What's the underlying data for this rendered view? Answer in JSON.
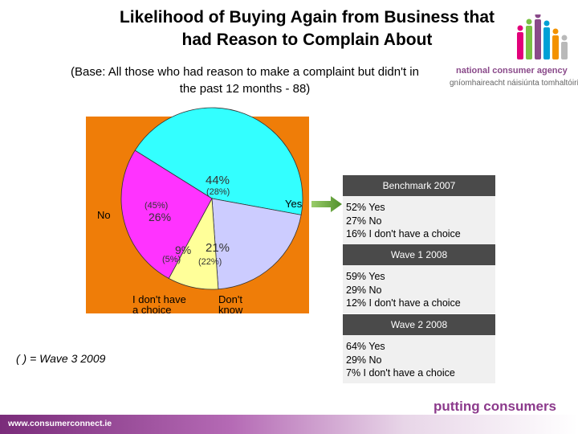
{
  "title_line1": "Likelihood of Buying Again from Business that",
  "title_line2": "had Reason to Complain About",
  "subtitle_line1": "(Base: All those who had reason to make a complaint but didn't in",
  "subtitle_line2": "the past 12 months - 88)",
  "logo": {
    "line1": "national consumer agency",
    "line2": "gníomhaireacht náisiúnta tomhaltóirí",
    "colors": [
      "#e2007a",
      "#7ac143",
      "#8a4a8a",
      "#00a0d6",
      "#f39200",
      "#b9b9b9"
    ]
  },
  "chart_data": {
    "type": "pie",
    "colors": {
      "Yes": "#33ffff",
      "No": "#ff33ff",
      "I don't have a choice": "#ffff99",
      "Don't know": "#ccccff"
    },
    "slices": [
      {
        "category": "Yes",
        "value": 44,
        "label": "44%",
        "wave3_label": "(28%)"
      },
      {
        "category": "Don't know",
        "value": 21,
        "label": "21%",
        "wave3_label": "(22%)"
      },
      {
        "category": "I don't have a choice",
        "value": 9,
        "label": "9%",
        "wave3_label": "(5%)"
      },
      {
        "category": "No",
        "value": 26,
        "label": "26%",
        "wave3_label": "(45%)"
      }
    ],
    "category_labels": {
      "yes": "Yes",
      "no": "No",
      "choice_line1": "I don't have",
      "choice_line2": "a choice",
      "dk_line1": "Don't",
      "dk_line2": "know"
    }
  },
  "benchmarks": [
    {
      "header": "Benchmark 2007",
      "rows": [
        "52%  Yes",
        "27%  No",
        "16%  I don't have a choice"
      ]
    },
    {
      "header": "Wave 1 2008",
      "rows": [
        "59%  Yes",
        "29%  No",
        "12%  I don't have a choice"
      ]
    },
    {
      "header": "Wave 2 2008",
      "rows": [
        "64%  Yes",
        "29%  No",
        "7%  I don't have a choice"
      ]
    }
  ],
  "note": "( ) = Wave 3 2009",
  "slogan": "putting consumers first",
  "footer_url": "www.consumerconnect.ie"
}
